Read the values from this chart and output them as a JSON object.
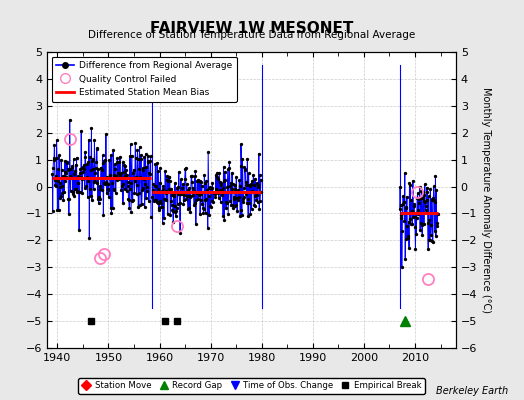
{
  "title": "FAIRVIEW 1W MESONET",
  "subtitle": "Difference of Station Temperature Data from Regional Average",
  "ylabel_right": "Monthly Temperature Anomaly Difference (°C)",
  "background_color": "#e8e8e8",
  "plot_bg_color": "#ffffff",
  "xlim": [
    1938,
    2018
  ],
  "ylim": [
    -6,
    5
  ],
  "yticks": [
    -6,
    -5,
    -4,
    -3,
    -2,
    -1,
    0,
    1,
    2,
    3,
    4,
    5
  ],
  "xticks": [
    1940,
    1950,
    1960,
    1970,
    1980,
    1990,
    2000,
    2010
  ],
  "watermark": "Berkeley Earth",
  "seg1_start": 1939.0,
  "seg1_end": 1958.4,
  "seg1_bias": 0.3,
  "seg2_start": 1958.6,
  "seg2_end": 1979.9,
  "seg2_bias": -0.2,
  "seg3_start": 2007.0,
  "seg3_end": 2014.5,
  "seg3_bias": -1.0,
  "empirical_breaks": [
    1946.5,
    1961.0,
    1963.5
  ],
  "record_gap_marker_x": 2008.0,
  "record_gap_marker_y": -5.0,
  "qc_fail_times": [
    1942.5,
    1948.3,
    1949.1,
    1963.5,
    2010.3,
    2012.5
  ],
  "qc_fail_values": [
    1.75,
    -2.65,
    -2.5,
    -1.45,
    -0.2,
    -3.45
  ],
  "seg1_gap_x": 1958.5,
  "seg2_gap_x": 1980.0,
  "seg3_start_x": 2007.0
}
